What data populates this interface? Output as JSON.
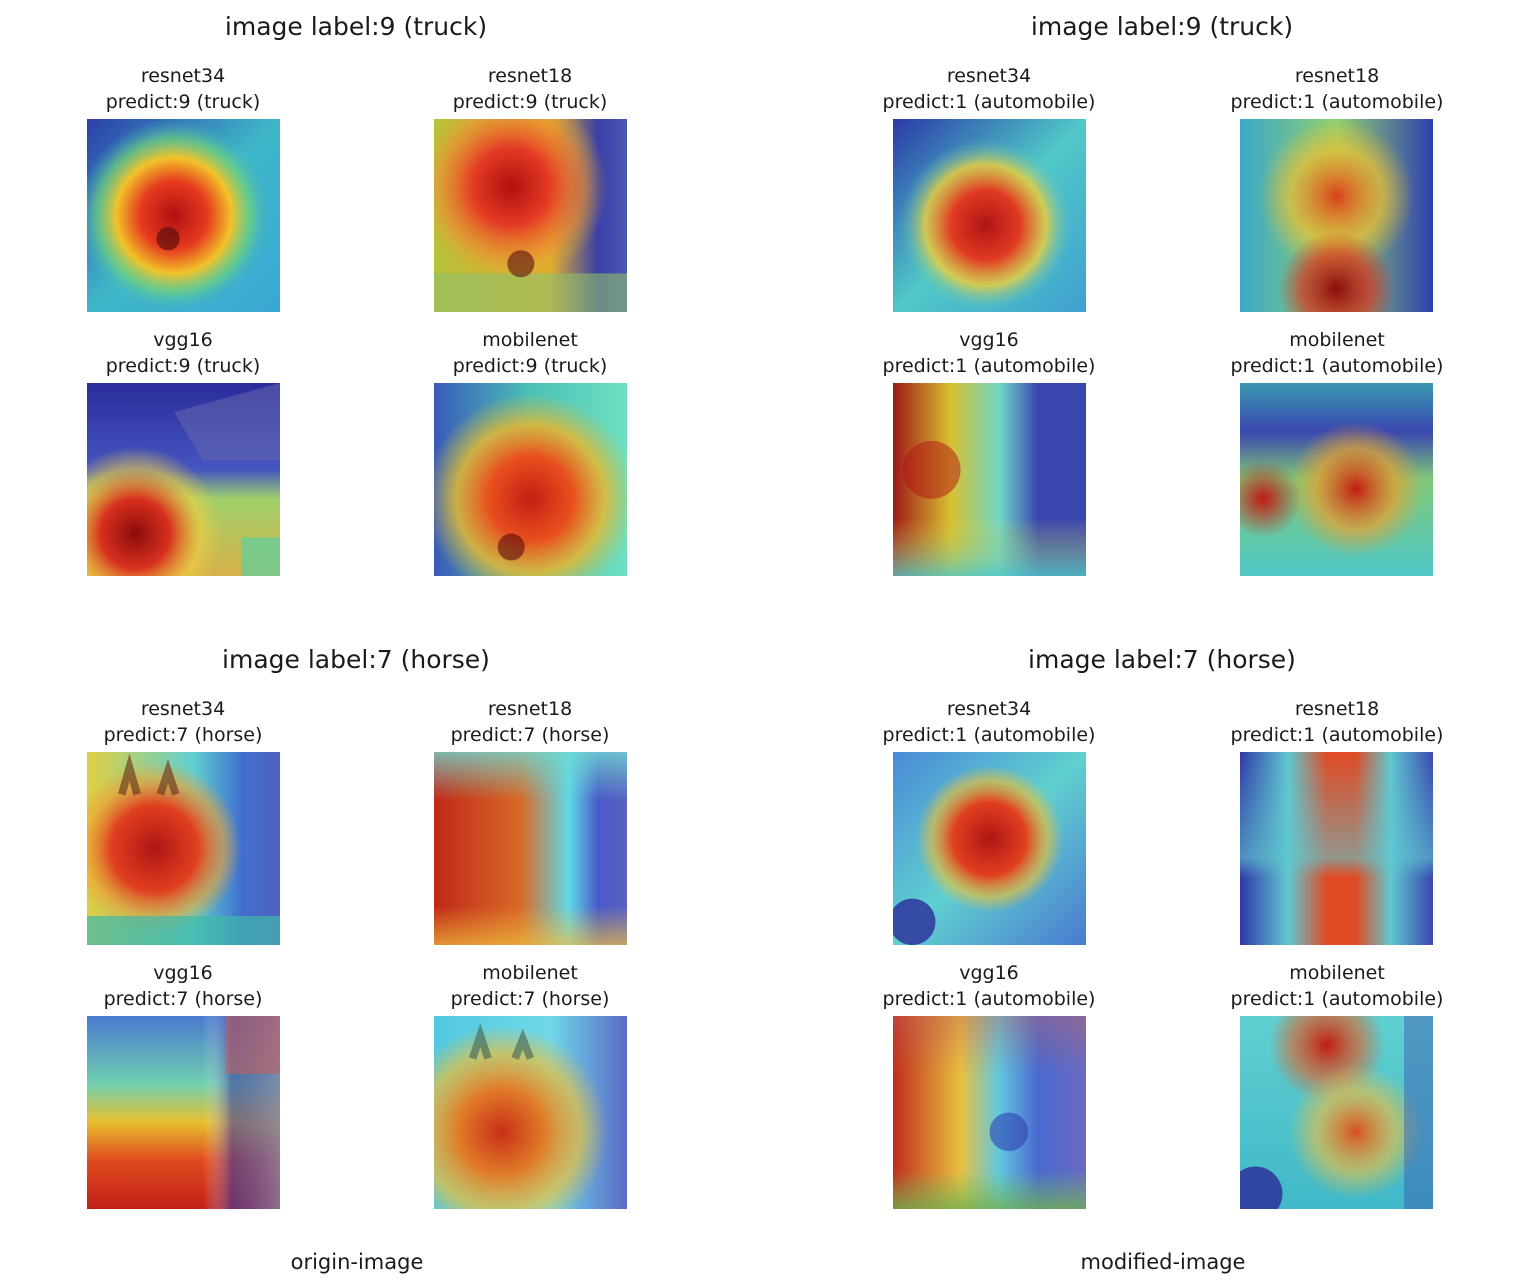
{
  "figure": {
    "groups": [
      {
        "title": "image label:9 (truck)",
        "cells": [
          {
            "model": "resnet34",
            "prediction": "predict:9 (truck)",
            "icon": "truck-heatmap"
          },
          {
            "model": "resnet18",
            "prediction": "predict:9 (truck)",
            "icon": "truck-heatmap"
          },
          {
            "model": "vgg16",
            "prediction": "predict:9 (truck)",
            "icon": "truck-heatmap"
          },
          {
            "model": "mobilenet",
            "prediction": "predict:9 (truck)",
            "icon": "truck-heatmap"
          }
        ]
      },
      {
        "title": "image label:9 (truck)",
        "cells": [
          {
            "model": "resnet34",
            "prediction": "predict:1 (automobile)",
            "icon": "truck-heatmap"
          },
          {
            "model": "resnet18",
            "prediction": "predict:1 (automobile)",
            "icon": "truck-heatmap"
          },
          {
            "model": "vgg16",
            "prediction": "predict:1 (automobile)",
            "icon": "truck-heatmap"
          },
          {
            "model": "mobilenet",
            "prediction": "predict:1 (automobile)",
            "icon": "truck-heatmap"
          }
        ]
      },
      {
        "title": "image label:7 (horse)",
        "cells": [
          {
            "model": "resnet34",
            "prediction": "predict:7 (horse)",
            "icon": "horse-heatmap"
          },
          {
            "model": "resnet18",
            "prediction": "predict:7 (horse)",
            "icon": "horse-heatmap"
          },
          {
            "model": "vgg16",
            "prediction": "predict:7 (horse)",
            "icon": "horse-heatmap"
          },
          {
            "model": "mobilenet",
            "prediction": "predict:7 (horse)",
            "icon": "horse-heatmap"
          }
        ]
      },
      {
        "title": "image label:7 (horse)",
        "cells": [
          {
            "model": "resnet34",
            "prediction": "predict:1 (automobile)",
            "icon": "horse-heatmap"
          },
          {
            "model": "resnet18",
            "prediction": "predict:1 (automobile)",
            "icon": "horse-heatmap"
          },
          {
            "model": "vgg16",
            "prediction": "predict:1 (automobile)",
            "icon": "horse-heatmap"
          },
          {
            "model": "mobilenet",
            "prediction": "predict:1 (automobile)",
            "icon": "horse-heatmap"
          }
        ]
      }
    ],
    "captions": {
      "left": "origin-image",
      "right": "modified-image"
    }
  }
}
